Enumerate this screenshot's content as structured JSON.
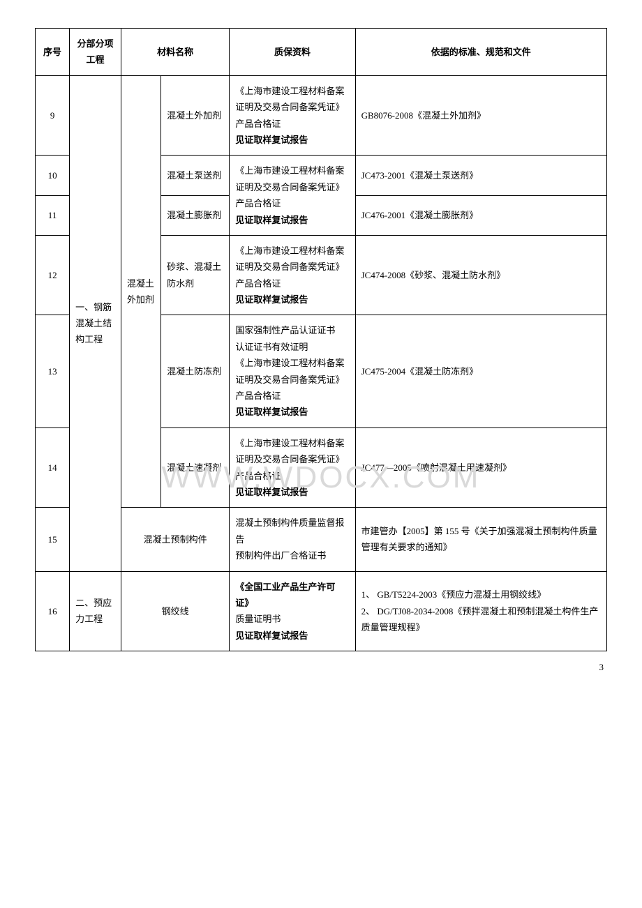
{
  "watermark": "WWW.WDOCX.COM",
  "page_number": "3",
  "headers": {
    "seq": "序号",
    "section": "分部分项\n工程",
    "material": "材料名称",
    "qa": "质保资料",
    "standard": "依据的标准、规范和文件"
  },
  "section_labels": {
    "s1": "一、钢筋混凝土结构工程",
    "s2": "二、预应力工程"
  },
  "material_groups": {
    "additive": "混凝土外加剂",
    "precast": "混凝土预制构件",
    "strand": "钢绞线"
  },
  "qa_shared_10_11": {
    "line1": "《上海市建设工程材料备案证明及交易合同备案凭证》",
    "line2": "产品合格证",
    "line3": "见证取样复试报告"
  },
  "rows": {
    "r9": {
      "seq": "9",
      "mat": "混凝土外加剂",
      "qa_l1": "《上海市建设工程材料备案证明及交易合同备案凭证》",
      "qa_l2": "产品合格证",
      "qa_l3": "见证取样复试报告",
      "std": "GB8076-2008《混凝土外加剂》"
    },
    "r10": {
      "seq": "10",
      "mat": "混凝土泵送剂",
      "std": "JC473-2001《混凝土泵送剂》"
    },
    "r11": {
      "seq": "11",
      "mat": "混凝土膨胀剂",
      "std": "JC476-2001《混凝土膨胀剂》"
    },
    "r12": {
      "seq": "12",
      "mat": "砂浆、混凝土防水剂",
      "qa_l1": "《上海市建设工程材料备案证明及交易合同备案凭证》",
      "qa_l2": "产品合格证",
      "qa_l3": "见证取样复试报告",
      "std": "JC474-2008《砂浆、混凝土防水剂》"
    },
    "r13": {
      "seq": "13",
      "mat": "混凝土防冻剂",
      "qa_l1": "国家强制性产品认证证书",
      "qa_l2": "认证证书有效证明",
      "qa_l3": "《上海市建设工程材料备案证明及交易合同备案凭证》",
      "qa_l4": "产品合格证",
      "qa_l5": "见证取样复试报告",
      "std": "JC475-2004《混凝土防冻剂》"
    },
    "r14": {
      "seq": "14",
      "mat": "混凝土速凝剂",
      "qa_l1": "《上海市建设工程材料备案证明及交易合同备案凭证》",
      "qa_l2": "产品合格证",
      "qa_l3": "见证取样复试报告",
      "std": "JC477—2005《喷射混凝土用速凝剂》"
    },
    "r15": {
      "seq": "15",
      "qa_l1": "混凝土预制构件质量监督报告",
      "qa_l2": "预制构件出厂合格证书",
      "std": "市建管办【2005】第 155 号《关于加强混凝土预制构件质量管理有关要求的通知》"
    },
    "r16": {
      "seq": "16",
      "qa_l1": "《全国工业产品生产许可证》",
      "qa_l2": "质量证明书",
      "qa_l3": "见证取样复试报告",
      "std_l1": "1、 GB/T5224-2003《预应力混凝土用钢绞线》",
      "std_l2": "2、 DG/TJ08-2034-2008《预拌混凝土和预制混凝土构件生产质量管理规程》"
    }
  }
}
